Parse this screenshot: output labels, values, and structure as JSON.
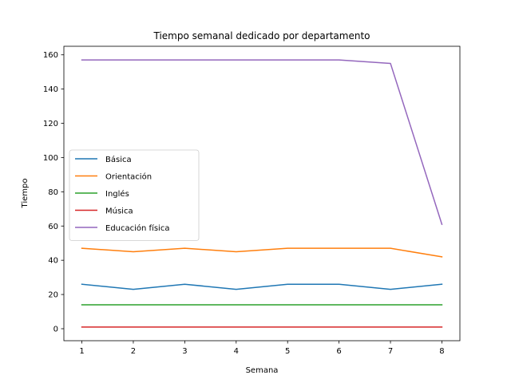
{
  "chart_data": {
    "type": "line",
    "title": "Tiempo semanal dedicado por departamento",
    "xlabel": "Semana",
    "ylabel": "Tiempo",
    "x": [
      1,
      2,
      3,
      4,
      5,
      6,
      7,
      8
    ],
    "xlim": [
      0.65,
      8.35
    ],
    "ylim": [
      -7,
      165
    ],
    "xticks": [
      1,
      2,
      3,
      4,
      5,
      6,
      7,
      8
    ],
    "yticks": [
      0,
      20,
      40,
      60,
      80,
      100,
      120,
      140,
      160
    ],
    "grid": false,
    "legend_position": "center-left",
    "series": [
      {
        "name": "Básica",
        "color": "#1f77b4",
        "values": [
          26,
          23,
          26,
          23,
          26,
          26,
          23,
          26
        ]
      },
      {
        "name": "Orientación",
        "color": "#ff7f0e",
        "values": [
          47,
          45,
          47,
          45,
          47,
          47,
          47,
          42
        ]
      },
      {
        "name": "Inglés",
        "color": "#2ca02c",
        "values": [
          14,
          14,
          14,
          14,
          14,
          14,
          14,
          14
        ]
      },
      {
        "name": "Música",
        "color": "#d62728",
        "values": [
          1,
          1,
          1,
          1,
          1,
          1,
          1,
          1
        ]
      },
      {
        "name": "Educación física",
        "color": "#9467bd",
        "values": [
          157,
          157,
          157,
          157,
          157,
          157,
          155,
          61
        ]
      }
    ]
  }
}
